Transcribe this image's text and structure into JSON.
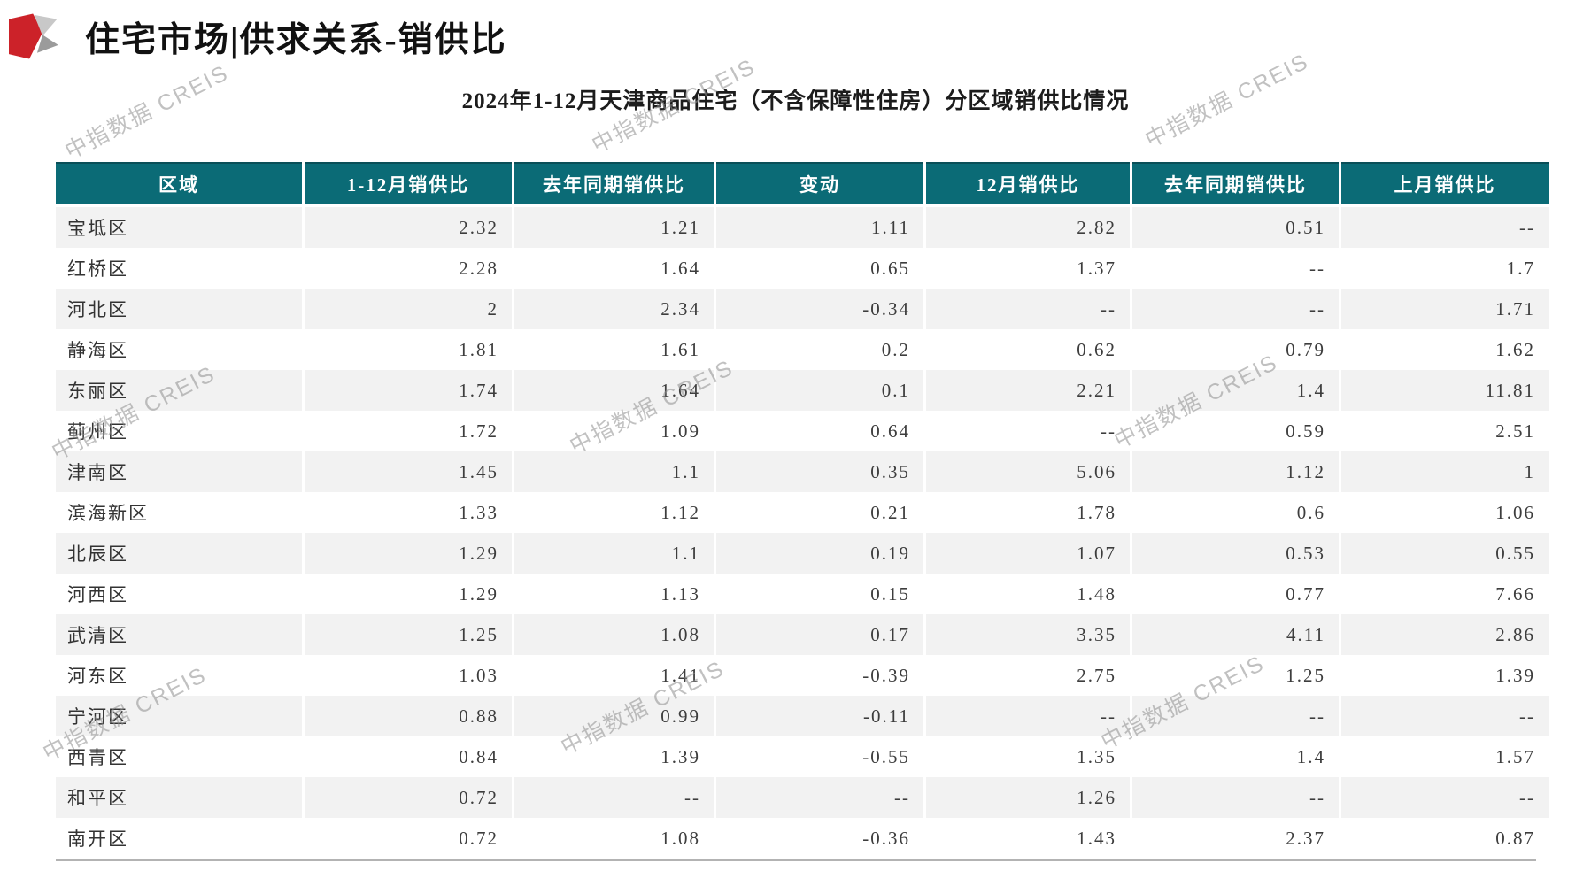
{
  "page_title": "住宅市场|供求关系-销供比",
  "subtitle": "2024年1-12月天津商品住宅（不含保障性住房）分区域销供比情况",
  "watermark_text": "中指数据 CREIS",
  "colors": {
    "header_bg": "#0b6b76",
    "alt_row_bg": "#f2f2f2",
    "bottom_rule": "#b3b3b3",
    "logo_red": "#cc2229",
    "logo_gray_light": "#c8c8c8",
    "logo_gray_dark": "#9b9b9b"
  },
  "chart_data": {
    "type": "table",
    "title": "2024年1-12月天津商品住宅（不含保障性住房）分区域销供比情况",
    "columns": [
      "区域",
      "1-12月销供比",
      "去年同期销供比",
      "变动",
      "12月销供比",
      "去年同期销供比",
      "上月销供比"
    ],
    "rows": [
      [
        "宝坻区",
        "2.32",
        "1.21",
        "1.11",
        "2.82",
        "0.51",
        "--"
      ],
      [
        "红桥区",
        "2.28",
        "1.64",
        "0.65",
        "1.37",
        "--",
        "1.7"
      ],
      [
        "河北区",
        "2",
        "2.34",
        "-0.34",
        "--",
        "--",
        "1.71"
      ],
      [
        "静海区",
        "1.81",
        "1.61",
        "0.2",
        "0.62",
        "0.79",
        "1.62"
      ],
      [
        "东丽区",
        "1.74",
        "1.64",
        "0.1",
        "2.21",
        "1.4",
        "11.81"
      ],
      [
        "蓟州区",
        "1.72",
        "1.09",
        "0.64",
        "--",
        "0.59",
        "2.51"
      ],
      [
        "津南区",
        "1.45",
        "1.1",
        "0.35",
        "5.06",
        "1.12",
        "1"
      ],
      [
        "滨海新区",
        "1.33",
        "1.12",
        "0.21",
        "1.78",
        "0.6",
        "1.06"
      ],
      [
        "北辰区",
        "1.29",
        "1.1",
        "0.19",
        "1.07",
        "0.53",
        "0.55"
      ],
      [
        "河西区",
        "1.29",
        "1.13",
        "0.15",
        "1.48",
        "0.77",
        "7.66"
      ],
      [
        "武清区",
        "1.25",
        "1.08",
        "0.17",
        "3.35",
        "4.11",
        "2.86"
      ],
      [
        "河东区",
        "1.03",
        "1.41",
        "-0.39",
        "2.75",
        "1.25",
        "1.39"
      ],
      [
        "宁河区",
        "0.88",
        "0.99",
        "-0.11",
        "--",
        "--",
        "--"
      ],
      [
        "西青区",
        "0.84",
        "1.39",
        "-0.55",
        "1.35",
        "1.4",
        "1.57"
      ],
      [
        "和平区",
        "0.72",
        "--",
        "--",
        "1.26",
        "--",
        "--"
      ],
      [
        "南开区",
        "0.72",
        "1.08",
        "-0.36",
        "1.43",
        "2.37",
        "0.87"
      ]
    ]
  }
}
